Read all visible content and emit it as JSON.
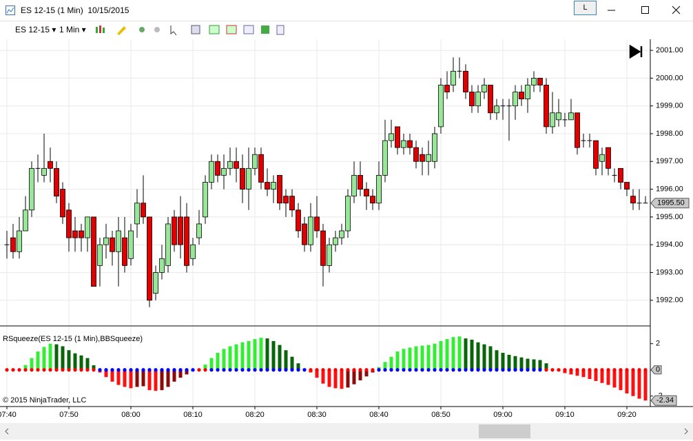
{
  "window": {
    "title": "ES 12-15 (1 Min)  10/15/2015",
    "account_button": "L"
  },
  "toolbar": {
    "instrument": "ES 12-15",
    "interval": "1 Min"
  },
  "chart_data": [
    {
      "type": "candlestick",
      "x": [
        "07:40",
        "07:41",
        "07:42",
        "07:43",
        "07:44",
        "07:45",
        "07:46",
        "07:47",
        "07:48",
        "07:49",
        "07:50",
        "07:51",
        "07:52",
        "07:53",
        "07:54",
        "07:55",
        "07:56",
        "07:57",
        "07:58",
        "07:59",
        "08:00",
        "08:01",
        "08:02",
        "08:03",
        "08:04",
        "08:05",
        "08:06",
        "08:07",
        "08:08",
        "08:09",
        "08:10",
        "08:11",
        "08:12",
        "08:13",
        "08:14",
        "08:15",
        "08:16",
        "08:17",
        "08:18",
        "08:19",
        "08:20",
        "08:21",
        "08:22",
        "08:23",
        "08:24",
        "08:25",
        "08:26",
        "08:27",
        "08:28",
        "08:29",
        "08:30",
        "08:31",
        "08:32",
        "08:33",
        "08:34",
        "08:35",
        "08:36",
        "08:37",
        "08:38",
        "08:39",
        "08:40",
        "08:41",
        "08:42",
        "08:43",
        "08:44",
        "08:45",
        "08:46",
        "08:47",
        "08:48",
        "08:49",
        "08:50",
        "08:51",
        "08:52",
        "08:53",
        "08:54",
        "08:55",
        "08:56",
        "08:57",
        "08:58",
        "08:59",
        "09:00",
        "09:01",
        "09:02",
        "09:03",
        "09:04",
        "09:05",
        "09:06",
        "09:07",
        "09:08",
        "09:09",
        "09:10",
        "09:11",
        "09:12",
        "09:13",
        "09:14",
        "09:15",
        "09:16",
        "09:17",
        "09:18",
        "09:19",
        "09:20",
        "09:21",
        "09:22",
        "09:23"
      ],
      "open": [
        1994,
        1994.25,
        1993.75,
        1994.5,
        1995.25,
        1996.75,
        1996.5,
        1997,
        1996.75,
        1996,
        1995.25,
        1994.5,
        1994.5,
        1994.25,
        1995,
        1993.25,
        1994,
        1994.25,
        1993.75,
        1994.25,
        1993.5,
        1994.75,
        1995.5,
        1995,
        1992.25,
        1993,
        1993.25,
        1995,
        1995,
        1995,
        1993.5,
        1994.25,
        1995,
        1996.25,
        1997,
        1996.5,
        1996.75,
        1997,
        1996.75,
        1996,
        1996.75,
        1997.25,
        1996.25,
        1996,
        1996.5,
        1995.75,
        1995.75,
        1995.25,
        1994.75,
        1994,
        1995,
        1994.5,
        1993.25,
        1994,
        1994.25,
        1994.5,
        1995.75,
        1996.5,
        1996,
        1995.75,
        1995.5,
        1996.5,
        1997.75,
        1998.25,
        1997.5,
        1997.75,
        1997.5,
        1997.25,
        1997,
        1997,
        1998.25,
        1999.75,
        1999.75,
        2000.25,
        2000.25,
        1999.5,
        1999,
        1999.5,
        1999.75,
        1998.75,
        1999,
        1999,
        1999,
        1999.5,
        1999.25,
        1999.75,
        2000,
        1999.75,
        1998.25,
        1998.5,
        1998.5,
        1998.5,
        1998.75,
        1997.75,
        1997.75,
        1997.75,
        1997,
        1997.5,
        1996.5,
        1996.75,
        1996.25,
        1995.75,
        1995.5,
        1995.5
      ],
      "high": [
        1994.5,
        1994.75,
        1995,
        1995.75,
        1997,
        1997.25,
        1998,
        1997.5,
        1997,
        1996.25,
        1995.5,
        1995,
        1994.75,
        1995,
        1995,
        1994.25,
        1994.75,
        1994.5,
        1995,
        1995,
        1994.75,
        1996,
        1996.5,
        1995,
        1993.25,
        1994,
        1995,
        1995.25,
        1995.75,
        1995.5,
        1994.25,
        1995.25,
        1996.5,
        1997.25,
        1997.25,
        1997.25,
        1997.5,
        1997.5,
        1997.25,
        1997.5,
        1997.5,
        1997.5,
        1996.75,
        1996.5,
        1996.5,
        1996,
        1996,
        1995.5,
        1995,
        1995.5,
        1995.75,
        1994.75,
        1994.25,
        1994.5,
        1994.75,
        1996,
        1997,
        1997,
        1996.25,
        1996,
        1997,
        1998.5,
        1998.5,
        1998.25,
        1998,
        1998,
        1997.75,
        1997.5,
        1997.75,
        1998.25,
        2000,
        2000.25,
        2000.75,
        2000.75,
        2000.5,
        1999.75,
        1999.75,
        2000,
        1999.75,
        1999.25,
        1999.25,
        1999.25,
        1999.75,
        1999.75,
        2000,
        2000.25,
        2000,
        2000,
        1999.5,
        1999.25,
        1998.75,
        1999.25,
        1998.75,
        1998,
        1998,
        1997.75,
        1997.5,
        1997.5,
        1996.75,
        1996.75,
        1996.25,
        1996,
        1996,
        1995.75
      ],
      "low": [
        1993.5,
        1993.5,
        1993.5,
        1994.5,
        1995,
        1996.25,
        1996.25,
        1996.25,
        1995.5,
        1994.75,
        1993.75,
        1993.75,
        1993.75,
        1993.75,
        1992.5,
        1992.5,
        1993.5,
        1993.25,
        1992.5,
        1993,
        1993.25,
        1994.25,
        1994.75,
        1991.75,
        1992,
        1992.75,
        1993,
        1993.75,
        1993.5,
        1993,
        1993.25,
        1994,
        1994.75,
        1996,
        1996.25,
        1996,
        1996.5,
        1996.25,
        1995.5,
        1995.25,
        1996.5,
        1996,
        1995.75,
        1995.5,
        1995.25,
        1995,
        1995,
        1994.25,
        1993.75,
        1993.75,
        1994.25,
        1992.5,
        1993,
        1993.75,
        1994,
        1994.25,
        1995.5,
        1995.75,
        1995.25,
        1995.25,
        1995.25,
        1996.25,
        1997.5,
        1997.25,
        1997.25,
        1997.25,
        1996.75,
        1996.5,
        1996.5,
        1996.75,
        1998,
        1999.25,
        1999.5,
        2000,
        1999.25,
        1998.75,
        1998.75,
        1999.25,
        1998.5,
        1998.5,
        1998.5,
        1997.75,
        1998.5,
        1999,
        1998.75,
        1999.5,
        1999.5,
        1998,
        1998,
        1998.25,
        1998.25,
        1998.5,
        1997.25,
        1997.5,
        1997.5,
        1996.5,
        1996.5,
        1996.5,
        1996.25,
        1996,
        1995.75,
        1995.25,
        1995.25,
        1995.5
      ],
      "close": [
        1994,
        1993.75,
        1994.5,
        1995.25,
        1996.75,
        1996.75,
        1996.75,
        1996.75,
        1995.75,
        1995,
        1994.25,
        1994.25,
        1994.25,
        1995,
        1992.5,
        1994,
        1994.25,
        1993.75,
        1994.5,
        1993.25,
        1994.5,
        1995.5,
        1995,
        1992,
        1993,
        1993.5,
        1994.75,
        1994,
        1994,
        1993.25,
        1994,
        1994.75,
        1996.25,
        1997,
        1996.5,
        1996.75,
        1997,
        1996.75,
        1996,
        1996.75,
        1997.25,
        1996.25,
        1996,
        1996.25,
        1995.5,
        1995.5,
        1995.25,
        1994.5,
        1994,
        1995,
        1994.5,
        1993.25,
        1994,
        1994.25,
        1994.5,
        1995.75,
        1996.5,
        1996,
        1995.75,
        1995.5,
        1996.5,
        1997.75,
        1998,
        1997.5,
        1997.75,
        1997.5,
        1997,
        1997,
        1997.25,
        1998,
        1999.75,
        1999.5,
        2000.25,
        2000.25,
        1999.5,
        1999,
        1999.5,
        1999.75,
        1998.75,
        1999,
        1999,
        1999,
        1999.5,
        1999.25,
        1999.75,
        2000,
        1999.75,
        1998.25,
        1998.75,
        1998.75,
        1998.5,
        1998.75,
        1997.5,
        1997.75,
        1997.75,
        1996.75,
        1997.25,
        1996.75,
        1996.5,
        1996.25,
        1996,
        1995.5,
        1995.5,
        1995.5
      ],
      "up_color": "#98e698",
      "down_color": "#e00000",
      "ylim": [
        1991.1,
        2001.4
      ],
      "yticks": [
        {
          "value": 1992,
          "label": "1992.00"
        },
        {
          "value": 1993,
          "label": "1993.00"
        },
        {
          "value": 1994,
          "label": "1994.00"
        },
        {
          "value": 1995,
          "label": "1995.00"
        },
        {
          "value": 1996,
          "label": "1996.00"
        },
        {
          "value": 1997,
          "label": "1997.00"
        },
        {
          "value": 1998,
          "label": "1998.00"
        },
        {
          "value": 1999,
          "label": "1999.00"
        },
        {
          "value": 2000,
          "label": "2000.00"
        },
        {
          "value": 2001,
          "label": "2001.00"
        }
      ],
      "xticks": [
        "07:40",
        "07:50",
        "08:00",
        "08:10",
        "08:20",
        "08:30",
        "08:40",
        "08:50",
        "09:00",
        "09:10",
        "09:20"
      ],
      "grid": true,
      "last_value_label": "1995.50"
    },
    {
      "type": "bar",
      "title": "RSqueeze(ES 12-15 (1 Min),BBSqueeze)",
      "values": [
        0,
        0,
        0.02,
        0.37,
        0.9,
        1.4,
        1.75,
        2.0,
        1.95,
        1.8,
        1.5,
        1.26,
        1.1,
        0.9,
        0.35,
        -0.2,
        -0.55,
        -0.9,
        -1.15,
        -1.3,
        -1.4,
        -1.3,
        -1.25,
        -1.55,
        -1.6,
        -1.55,
        -1.3,
        -0.9,
        -0.6,
        -0.35,
        -0.1,
        0.05,
        0.4,
        0.9,
        1.3,
        1.6,
        1.8,
        1.95,
        2.1,
        2.2,
        2.35,
        2.45,
        2.4,
        2.2,
        1.9,
        1.5,
        1.0,
        0.5,
        0.1,
        -0.2,
        -0.6,
        -1.05,
        -1.3,
        -1.4,
        -1.45,
        -1.35,
        -1.1,
        -0.8,
        -0.5,
        -0.2,
        0.2,
        0.6,
        1.0,
        1.4,
        1.6,
        1.7,
        1.8,
        1.85,
        1.9,
        2.0,
        2.2,
        2.35,
        2.5,
        2.55,
        2.4,
        2.3,
        2.1,
        1.95,
        1.8,
        1.5,
        1.3,
        1.15,
        1.05,
        0.95,
        0.85,
        0.8,
        0.75,
        0.5,
        -0.05,
        -0.1,
        -0.25,
        -0.35,
        -0.45,
        -0.55,
        -0.7,
        -0.85,
        -1.0,
        -1.15,
        -1.35,
        -1.55,
        -1.8,
        -2.0,
        -2.2,
        -2.34
      ],
      "colors": {
        "rising_positive": "#33ee33",
        "falling_positive": "#0a640a",
        "falling_negative": "#ff1010",
        "rising_negative": "#8b0a0a"
      },
      "squeeze_on": [
        1,
        1,
        1,
        1,
        1,
        1,
        1,
        1,
        1,
        1,
        1,
        1,
        1,
        1,
        1,
        0,
        0,
        0,
        0,
        0,
        0,
        0,
        0,
        0,
        0,
        0,
        0,
        0,
        0,
        0,
        0,
        1,
        1,
        0,
        0,
        0,
        0,
        0,
        0,
        0,
        0,
        0,
        0,
        0,
        0,
        0,
        0,
        0,
        0,
        1,
        1,
        1,
        1,
        1,
        1,
        1,
        1,
        1,
        1,
        1,
        0,
        0,
        0,
        0,
        0,
        0,
        0,
        0,
        0,
        0,
        0,
        0,
        0,
        0,
        0,
        0,
        0,
        0,
        0,
        0,
        0,
        0,
        0,
        0,
        0,
        0,
        0,
        1,
        1,
        1,
        1,
        1,
        1,
        1,
        1,
        1,
        1,
        1,
        1,
        1,
        1,
        1,
        1,
        1
      ],
      "dot_colors": {
        "on": "#ff0000",
        "off": "#0000ff"
      },
      "ylim": [
        -2.8,
        3.3
      ],
      "yticks": [
        -2,
        0,
        2
      ]
    }
  ],
  "copyright": "© 2015 NinjaTrader, LLC"
}
